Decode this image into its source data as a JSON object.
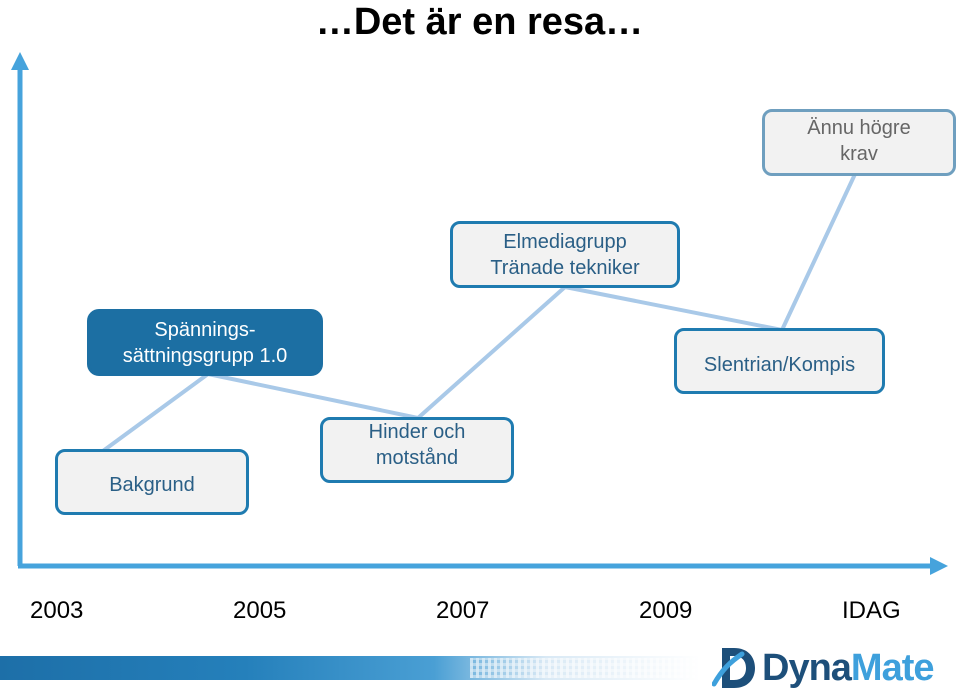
{
  "title": "…Det är en resa…",
  "boxes": {
    "bakgrund": "Bakgrund",
    "spanning": "Spännings-\nsättningsgrupp 1.0",
    "hinder": "Hinder och\nmotstånd",
    "elmedia": "Elmediagrupp\nTränade tekniker",
    "slentrian": "Slentrian/Kompis",
    "annu": "Ännu högre\nkrav"
  },
  "years": [
    "2003",
    "2005",
    "2007",
    "2009",
    "IDAG"
  ],
  "logo": {
    "part1": "Dyna",
    "part2": "Mate"
  },
  "colors": {
    "axis": "#46a3dc",
    "path": "#a9c9e8",
    "box_border": "#1f7bb0",
    "box_fill": "#f2f2f2",
    "filled_box": "#1c6fa3",
    "logo_dark": "#1d4f7a",
    "logo_light": "#3ea0dc"
  }
}
